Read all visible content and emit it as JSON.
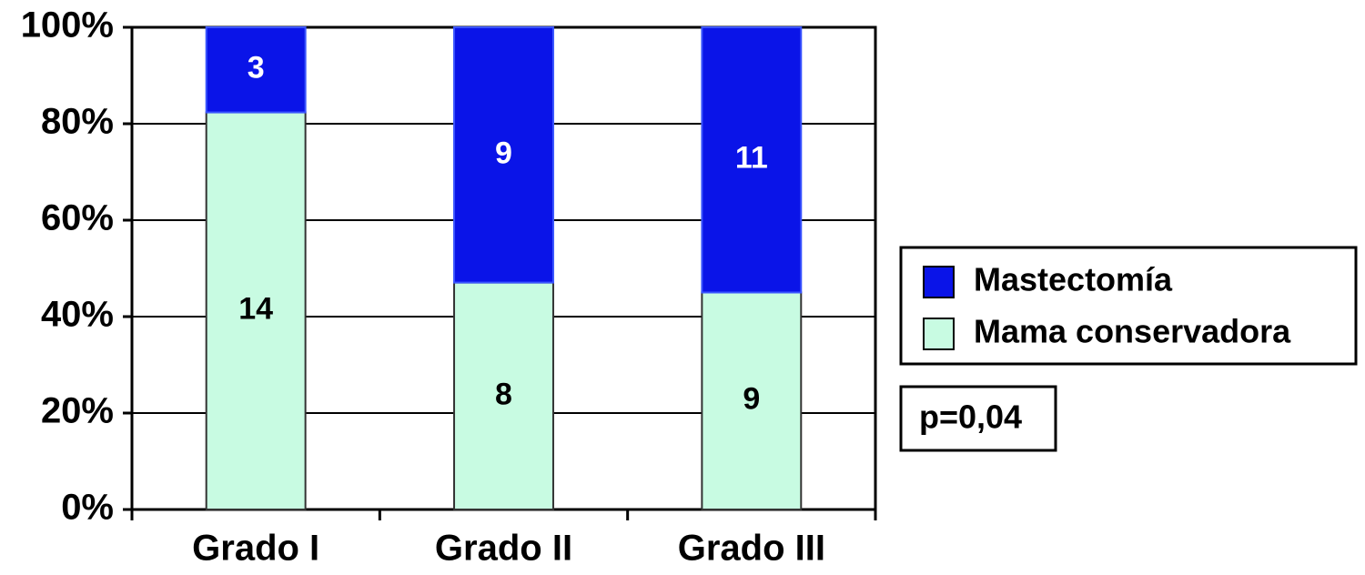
{
  "chart_data": {
    "type": "bar",
    "stacked": "percent",
    "categories": [
      "Grado I",
      "Grado II",
      "Grado III"
    ],
    "series": [
      {
        "name": "Mama conservadora",
        "color": "#c8fbe2",
        "values": [
          14,
          8,
          9
        ]
      },
      {
        "name": "Mastectomía",
        "color": "#0a14e8",
        "values": [
          3,
          9,
          11
        ]
      }
    ],
    "ylim": [
      0,
      100
    ],
    "yticks": [
      {
        "value": 0,
        "label": "0%"
      },
      {
        "value": 20,
        "label": "20%"
      },
      {
        "value": 40,
        "label": "40%"
      },
      {
        "value": 60,
        "label": "60%"
      },
      {
        "value": 80,
        "label": "80%"
      },
      {
        "value": 100,
        "label": "100%"
      }
    ],
    "grid": true,
    "legend": "right",
    "annotation": "p=0,04"
  }
}
